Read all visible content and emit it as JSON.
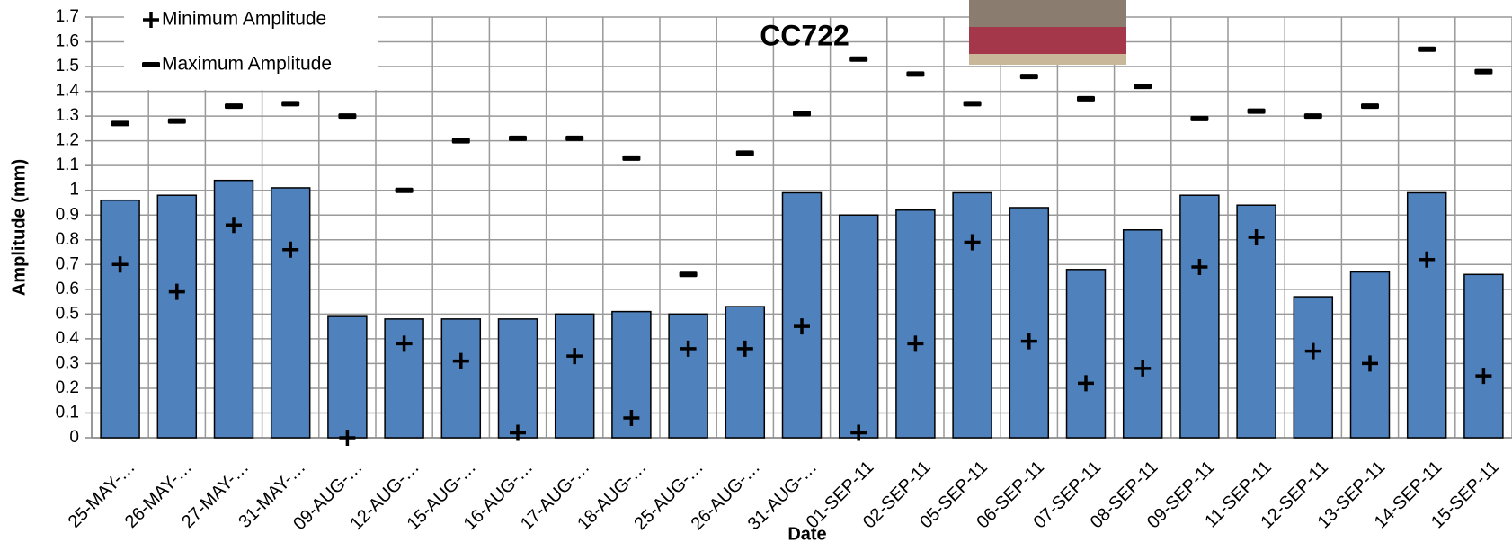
{
  "chart_data": {
    "type": "bar",
    "title": "CC722",
    "x_label": "Date",
    "y_label": "Amplitude (mm)",
    "categories": [
      "25-MAY-…",
      "26-MAY-…",
      "27-MAY-…",
      "31-MAY-…",
      "09-AUG-…",
      "12-AUG-…",
      "15-AUG-…",
      "16-AUG-…",
      "17-AUG-…",
      "18-AUG-…",
      "25-AUG-…",
      "26-AUG-…",
      "31-AUG-…",
      "01-SEP-11",
      "02-SEP-11",
      "05-SEP-11",
      "06-SEP-11",
      "07-SEP-11",
      "08-SEP-11",
      "09-SEP-11",
      "11-SEP-11",
      "12-SEP-11",
      "13-SEP-11",
      "14-SEP-11",
      "15-SEP-11"
    ],
    "series": [
      {
        "color": "#4f81bd",
        "values": [
          0.96,
          0.98,
          1.04,
          1.01,
          0.49,
          0.48,
          0.48,
          0.48,
          0.5,
          0.51,
          0.5,
          0.53,
          0.99,
          0.9,
          0.92,
          0.99,
          0.93,
          0.68,
          0.84,
          0.98,
          0.94,
          0.57,
          0.67,
          0.99,
          0.66
        ]
      },
      {
        "name": "Minimum Amplitude",
        "color": "#000000",
        "marker": "plus",
        "values": [
          0.7,
          0.59,
          0.86,
          0.76,
          0.0,
          0.38,
          0.31,
          0.02,
          0.33,
          0.08,
          0.36,
          0.36,
          0.45,
          0.02,
          0.38,
          0.79,
          0.39,
          0.22,
          0.28,
          0.69,
          0.81,
          0.35,
          0.3,
          0.72,
          0.25
        ]
      },
      {
        "name": "Maximum Amplitude",
        "color": "#000000",
        "marker": "dash",
        "values": [
          1.27,
          1.28,
          1.34,
          1.35,
          1.3,
          1.0,
          1.2,
          1.21,
          1.21,
          1.13,
          0.66,
          1.15,
          1.31,
          1.53,
          1.47,
          1.35,
          1.46,
          1.37,
          1.42,
          1.29,
          1.32,
          1.3,
          1.34,
          1.57,
          1.48
        ]
      }
    ],
    "ylim": [
      0,
      1.7
    ],
    "yticks": [
      0,
      0.1,
      0.2,
      0.3,
      0.4,
      0.5,
      0.6,
      0.7,
      0.8,
      0.9,
      1,
      1.1,
      1.2,
      1.3,
      1.4,
      1.5,
      1.6,
      1.7
    ],
    "grid": true,
    "legend": "top-left"
  }
}
